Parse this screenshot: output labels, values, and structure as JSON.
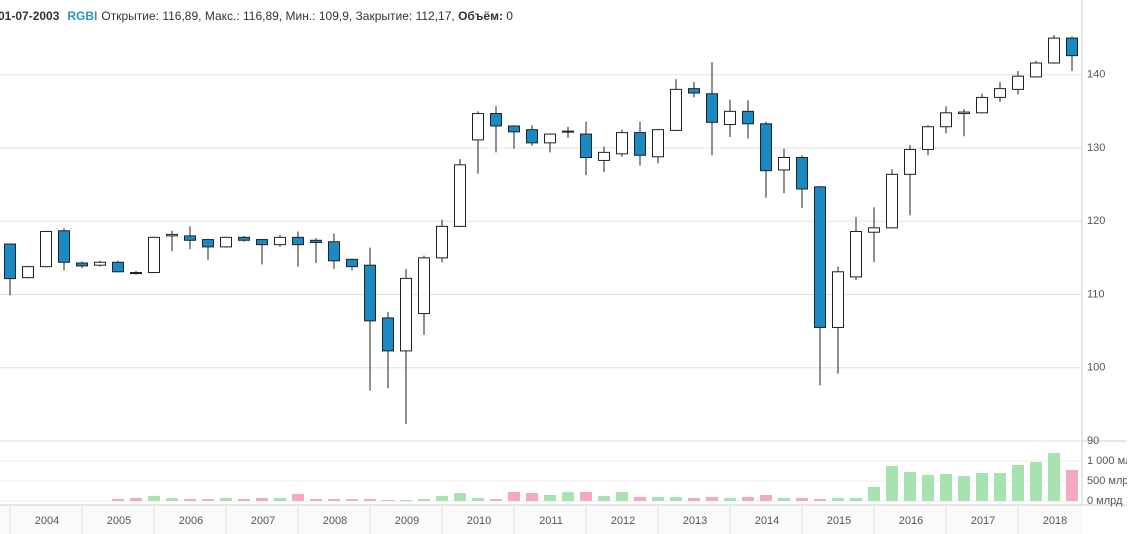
{
  "header": {
    "date": "01-07-2003",
    "ticker": "RGBI",
    "separator": ", ",
    "fields": [
      {
        "label": "Открытие:",
        "value": "116,89"
      },
      {
        "label": "Макс.:",
        "value": "116,89"
      },
      {
        "label": "Мин.:",
        "value": "109,9"
      },
      {
        "label": "Закрытие:",
        "value": "112,17"
      },
      {
        "label": "Объём:",
        "value": "0"
      }
    ]
  },
  "chart_data": [
    {
      "type": "candlestick",
      "up_color": "#ffffff",
      "down_color": "#1a8ac4",
      "grid": true,
      "categories": [
        null,
        null,
        "2004",
        null,
        null,
        null,
        "2005",
        null,
        null,
        null,
        "2006",
        null,
        null,
        null,
        "2007",
        null,
        null,
        null,
        "2008",
        null,
        null,
        null,
        "2009",
        null,
        null,
        null,
        "2010",
        null,
        null,
        null,
        "2011",
        null,
        null,
        null,
        "2012",
        null,
        null,
        null,
        "2013",
        null,
        null,
        null,
        "2014",
        null,
        null,
        null,
        "2015",
        null,
        null,
        null,
        "2016",
        null,
        null,
        null,
        "2017",
        null,
        null,
        null,
        "2018",
        null
      ],
      "open": [
        116.89,
        112.3,
        113.8,
        118.7,
        114.3,
        114.0,
        114.4,
        113.0,
        113.0,
        118.0,
        118.0,
        117.5,
        116.5,
        117.8,
        117.5,
        116.8,
        117.8,
        117.4,
        117.2,
        114.8,
        114.0,
        106.8,
        102.3,
        107.4,
        115.0,
        119.3,
        131.1,
        134.7,
        133.0,
        132.5,
        130.7,
        132.2,
        131.9,
        128.3,
        129.2,
        132.1,
        128.8,
        132.4,
        138.1,
        137.4,
        133.2,
        135.0,
        133.3,
        127.0,
        128.7,
        124.7,
        105.5,
        112.4,
        118.5,
        119.1,
        126.4,
        129.8,
        132.9,
        134.7,
        134.8,
        136.9,
        138.0,
        139.7,
        141.6,
        145.0
      ],
      "high": [
        116.89,
        113.9,
        118.7,
        119.0,
        114.5,
        114.6,
        114.6,
        113.2,
        117.9,
        118.7,
        119.3,
        117.6,
        117.9,
        118.0,
        117.6,
        118.1,
        118.6,
        117.7,
        118.3,
        114.9,
        116.4,
        107.6,
        113.5,
        115.3,
        120.2,
        128.5,
        135.0,
        135.7,
        133.1,
        133.1,
        132.0,
        132.9,
        133.6,
        130.2,
        132.5,
        133.6,
        132.6,
        139.4,
        139.0,
        141.7,
        136.6,
        136.5,
        133.6,
        129.9,
        129.0,
        124.8,
        113.8,
        120.6,
        121.9,
        127.1,
        130.4,
        133.1,
        135.7,
        135.3,
        137.4,
        139.0,
        140.5,
        141.9,
        145.4,
        145.2
      ],
      "low": [
        109.9,
        112.2,
        113.7,
        113.3,
        113.6,
        113.8,
        113.0,
        112.7,
        112.9,
        115.9,
        116.2,
        114.7,
        116.4,
        117.2,
        114.1,
        116.5,
        113.8,
        114.3,
        113.5,
        113.3,
        96.9,
        97.2,
        92.3,
        104.5,
        114.4,
        119.2,
        126.5,
        129.4,
        129.9,
        130.3,
        129.4,
        131.4,
        126.3,
        126.7,
        128.8,
        127.6,
        127.9,
        132.3,
        136.9,
        129.0,
        131.5,
        131.3,
        123.2,
        123.8,
        121.8,
        97.6,
        99.2,
        112.0,
        114.4,
        119.0,
        120.8,
        129.0,
        132.0,
        131.6,
        134.7,
        136.3,
        137.3,
        139.6,
        141.5,
        140.5
      ],
      "close": [
        112.17,
        113.8,
        118.6,
        114.4,
        113.9,
        114.4,
        113.1,
        112.9,
        117.8,
        118.2,
        117.4,
        116.5,
        117.8,
        117.4,
        116.8,
        117.8,
        116.8,
        117.1,
        114.6,
        113.8,
        106.4,
        102.3,
        112.2,
        115.0,
        119.3,
        127.7,
        134.7,
        133.0,
        132.2,
        130.7,
        131.9,
        132.3,
        128.7,
        129.4,
        132.1,
        129.0,
        132.5,
        138.0,
        137.5,
        133.5,
        135.0,
        133.3,
        126.9,
        128.7,
        124.4,
        105.5,
        113.1,
        118.6,
        119.1,
        126.4,
        129.8,
        132.9,
        134.8,
        134.9,
        136.9,
        138.1,
        139.8,
        141.6,
        145.0,
        142.6
      ],
      "ylim": [
        90,
        150.2
      ],
      "yticks": [
        90,
        100,
        110,
        120,
        130,
        140
      ]
    },
    {
      "type": "bar",
      "up_color": "#a6e3b0",
      "down_color": "#f4a9c0",
      "values": [
        0,
        0,
        0,
        0,
        0,
        0,
        50,
        75,
        125,
        75,
        50,
        50,
        75,
        50,
        75,
        75,
        175,
        50,
        50,
        50,
        50,
        25,
        25,
        50,
        125,
        200,
        75,
        50,
        225,
        200,
        150,
        225,
        225,
        125,
        225,
        100,
        100,
        100,
        75,
        100,
        75,
        100,
        150,
        75,
        75,
        50,
        75,
        75,
        350,
        875,
        725,
        650,
        675,
        625,
        700,
        700,
        900,
        975,
        1200,
        775
      ],
      "ylim": [
        0,
        1500
      ],
      "yticks": [
        {
          "value": 0,
          "label": "0 млрд"
        },
        {
          "value": 500,
          "label": "500 млрд"
        },
        {
          "value": 1000,
          "label": "1 000 млрд"
        }
      ]
    }
  ]
}
